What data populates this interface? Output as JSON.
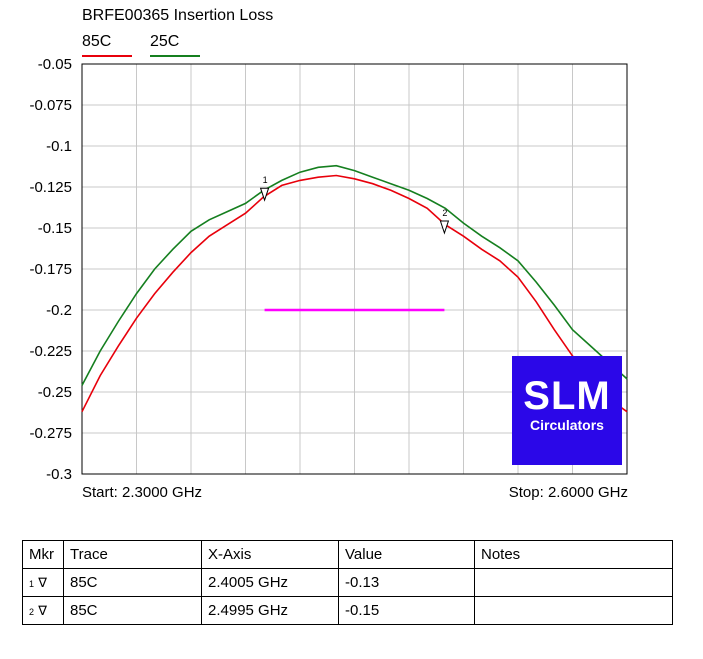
{
  "title": "BRFE00365 Insertion Loss",
  "colors": {
    "s85": "#e8000b",
    "s25": "#157f1f",
    "limit": "#ff00ff",
    "grid": "#c8c8c8",
    "logo_bg": "#2b07e8"
  },
  "footer": {
    "start": "Start: 2.3000 GHz",
    "stop": "Stop: 2.6000 GHz"
  },
  "logo": {
    "big": "SLM",
    "small": "Circulators"
  },
  "chart_data": {
    "type": "line",
    "title": "BRFE00365 Insertion Loss",
    "xlabel": "",
    "ylabel": "",
    "xlim": [
      2.3,
      2.6
    ],
    "ylim": [
      -0.3,
      -0.05
    ],
    "y_ticks": [
      "-0.05",
      "-0.075",
      "-0.1",
      "-0.125",
      "-0.15",
      "-0.175",
      "-0.2",
      "-0.225",
      "-0.25",
      "-0.275",
      "-0.3"
    ],
    "grid": true,
    "legend": "top-left",
    "series": [
      {
        "name": "85C",
        "x": [
          2.3,
          2.31,
          2.32,
          2.33,
          2.34,
          2.35,
          2.36,
          2.37,
          2.38,
          2.39,
          2.4,
          2.41,
          2.42,
          2.43,
          2.44,
          2.45,
          2.46,
          2.47,
          2.48,
          2.49,
          2.5,
          2.51,
          2.52,
          2.53,
          2.54,
          2.55,
          2.56,
          2.57,
          2.58,
          2.59,
          2.6
        ],
        "y": [
          -0.262,
          -0.24,
          -0.222,
          -0.205,
          -0.19,
          -0.177,
          -0.165,
          -0.155,
          -0.148,
          -0.141,
          -0.131,
          -0.124,
          -0.121,
          -0.119,
          -0.118,
          -0.12,
          -0.123,
          -0.127,
          -0.132,
          -0.138,
          -0.148,
          -0.155,
          -0.163,
          -0.17,
          -0.18,
          -0.195,
          -0.212,
          -0.228,
          -0.242,
          -0.254,
          -0.262
        ]
      },
      {
        "name": "25C",
        "x": [
          2.3,
          2.31,
          2.32,
          2.33,
          2.34,
          2.35,
          2.36,
          2.37,
          2.38,
          2.39,
          2.4,
          2.41,
          2.42,
          2.43,
          2.44,
          2.45,
          2.46,
          2.47,
          2.48,
          2.49,
          2.5,
          2.51,
          2.52,
          2.53,
          2.54,
          2.55,
          2.56,
          2.57,
          2.58,
          2.59,
          2.6
        ],
        "y": [
          -0.246,
          -0.225,
          -0.207,
          -0.19,
          -0.175,
          -0.163,
          -0.152,
          -0.145,
          -0.14,
          -0.135,
          -0.127,
          -0.121,
          -0.116,
          -0.113,
          -0.112,
          -0.115,
          -0.119,
          -0.123,
          -0.127,
          -0.132,
          -0.138,
          -0.147,
          -0.155,
          -0.162,
          -0.17,
          -0.183,
          -0.197,
          -0.212,
          -0.222,
          -0.232,
          -0.242
        ]
      }
    ],
    "limit_line": {
      "x": [
        2.4005,
        2.4995
      ],
      "y": -0.2
    },
    "markers": [
      {
        "label": "1",
        "x": 2.4005,
        "y": -0.13
      },
      {
        "label": "2",
        "x": 2.4995,
        "y": -0.15
      }
    ]
  },
  "table": {
    "headers": [
      "Mkr",
      "Trace",
      "X-Axis",
      "Value",
      "Notes"
    ],
    "rows": [
      {
        "num": "1",
        "glyph": "∇",
        "trace": "85C",
        "x": "2.4005 GHz",
        "value": "-0.13",
        "notes": ""
      },
      {
        "num": "2",
        "glyph": "∇",
        "trace": "85C",
        "x": "2.4995 GHz",
        "value": "-0.15",
        "notes": ""
      }
    ]
  }
}
